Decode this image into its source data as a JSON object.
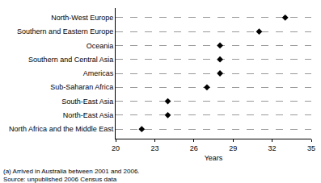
{
  "chart_data": {
    "type": "scatter",
    "orientation": "horizontal",
    "categories": [
      "North-West Europe",
      "Southern and Eastern Europe",
      "Oceania",
      "Southern and Central Asia",
      "Americas",
      "Sub-Saharan Africa",
      "South-East Asia",
      "North-East Asia",
      "North Africa and the Middle East"
    ],
    "values": [
      33,
      31,
      28,
      28,
      28,
      27,
      24,
      24,
      22
    ],
    "color": "#000000",
    "marker": "diamond",
    "xlabel": "Years",
    "xlim": [
      20,
      35
    ],
    "xticks": [
      20,
      23,
      26,
      29,
      32,
      35
    ],
    "grid": true,
    "annotations": [
      "(a) Arrived in Australia between 2001 and 2006.",
      "Source: unpublished 2006 Census data"
    ]
  }
}
